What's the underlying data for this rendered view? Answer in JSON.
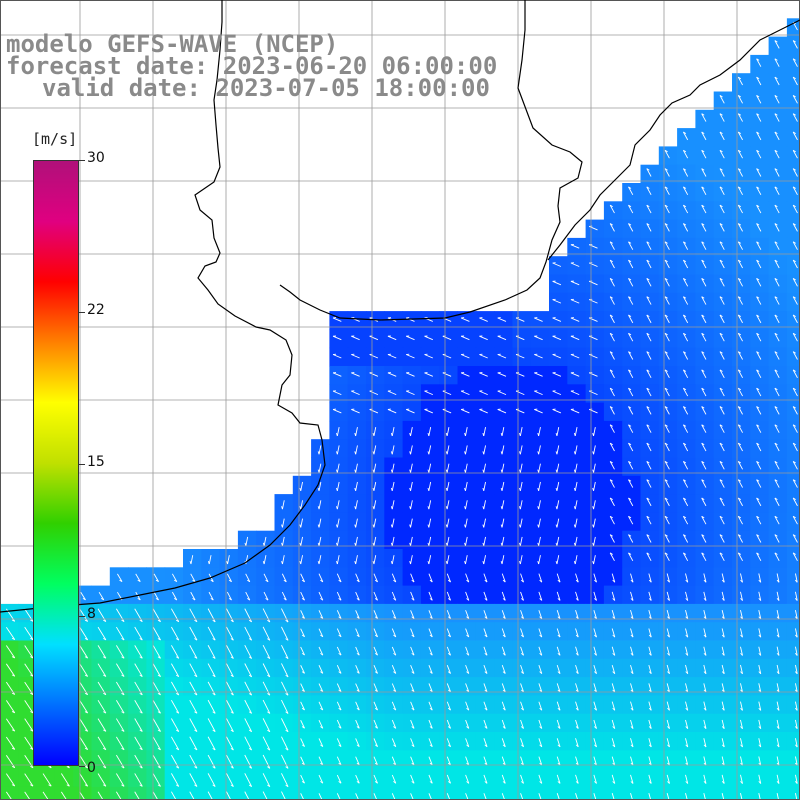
{
  "title": {
    "line1": "modelo GEFS-WAVE (NCEP)",
    "line2": "forecast date: 2023-06-20 06:00:00",
    "line3": "valid date: 2023-07-05 18:00:00"
  },
  "colorbar": {
    "units": "[m/s]",
    "ticks": [
      "30",
      "22",
      "15",
      "8",
      "0"
    ],
    "min": 0,
    "max": 30,
    "colors": [
      "#0000ff",
      "#0070ff",
      "#00e0ff",
      "#00ff60",
      "#30d000",
      "#c0e000",
      "#ffff00",
      "#ff8000",
      "#ff0000",
      "#e00080",
      "#b0107a"
    ]
  },
  "map": {
    "land_color": "#ffffff",
    "grid_color": "#9a9a9a",
    "coast_color": "#000000",
    "arrow_color": "#ffffff",
    "field_description_colors": {
      "low": "#0028ff",
      "mid": "#1890ff",
      "high": "#00e6e6",
      "peak": "#30dd30"
    }
  }
}
